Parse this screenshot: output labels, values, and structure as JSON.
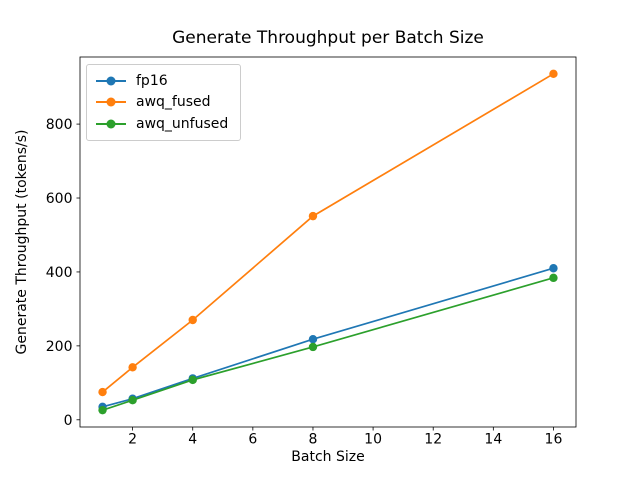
{
  "chart_data": {
    "type": "line",
    "title": "Generate Throughput per Batch Size",
    "xlabel": "Batch Size",
    "ylabel": "Generate Throughput (tokens/s)",
    "x": [
      1,
      2,
      4,
      8,
      16
    ],
    "series": [
      {
        "name": "fp16",
        "color": "#1f77b4",
        "values": [
          35,
          57,
          112,
          218,
          410
        ]
      },
      {
        "name": "awq_fused",
        "color": "#ff7f0e",
        "values": [
          75,
          142,
          270,
          551,
          936
        ]
      },
      {
        "name": "awq_unfused",
        "color": "#2ca02c",
        "values": [
          26,
          53,
          108,
          197,
          384
        ]
      }
    ],
    "x_ticks": [
      2,
      4,
      6,
      8,
      10,
      12,
      14,
      16
    ],
    "y_ticks": [
      0,
      200,
      400,
      600,
      800
    ],
    "xlim": [
      0.25,
      16.75
    ],
    "ylim": [
      -19.5,
      981.5
    ],
    "grid": false,
    "legend_position": "upper left",
    "marker": "circle",
    "line_width": 1.7,
    "marker_radius": 4.2,
    "axis_color": "#000000",
    "background": "#ffffff"
  }
}
